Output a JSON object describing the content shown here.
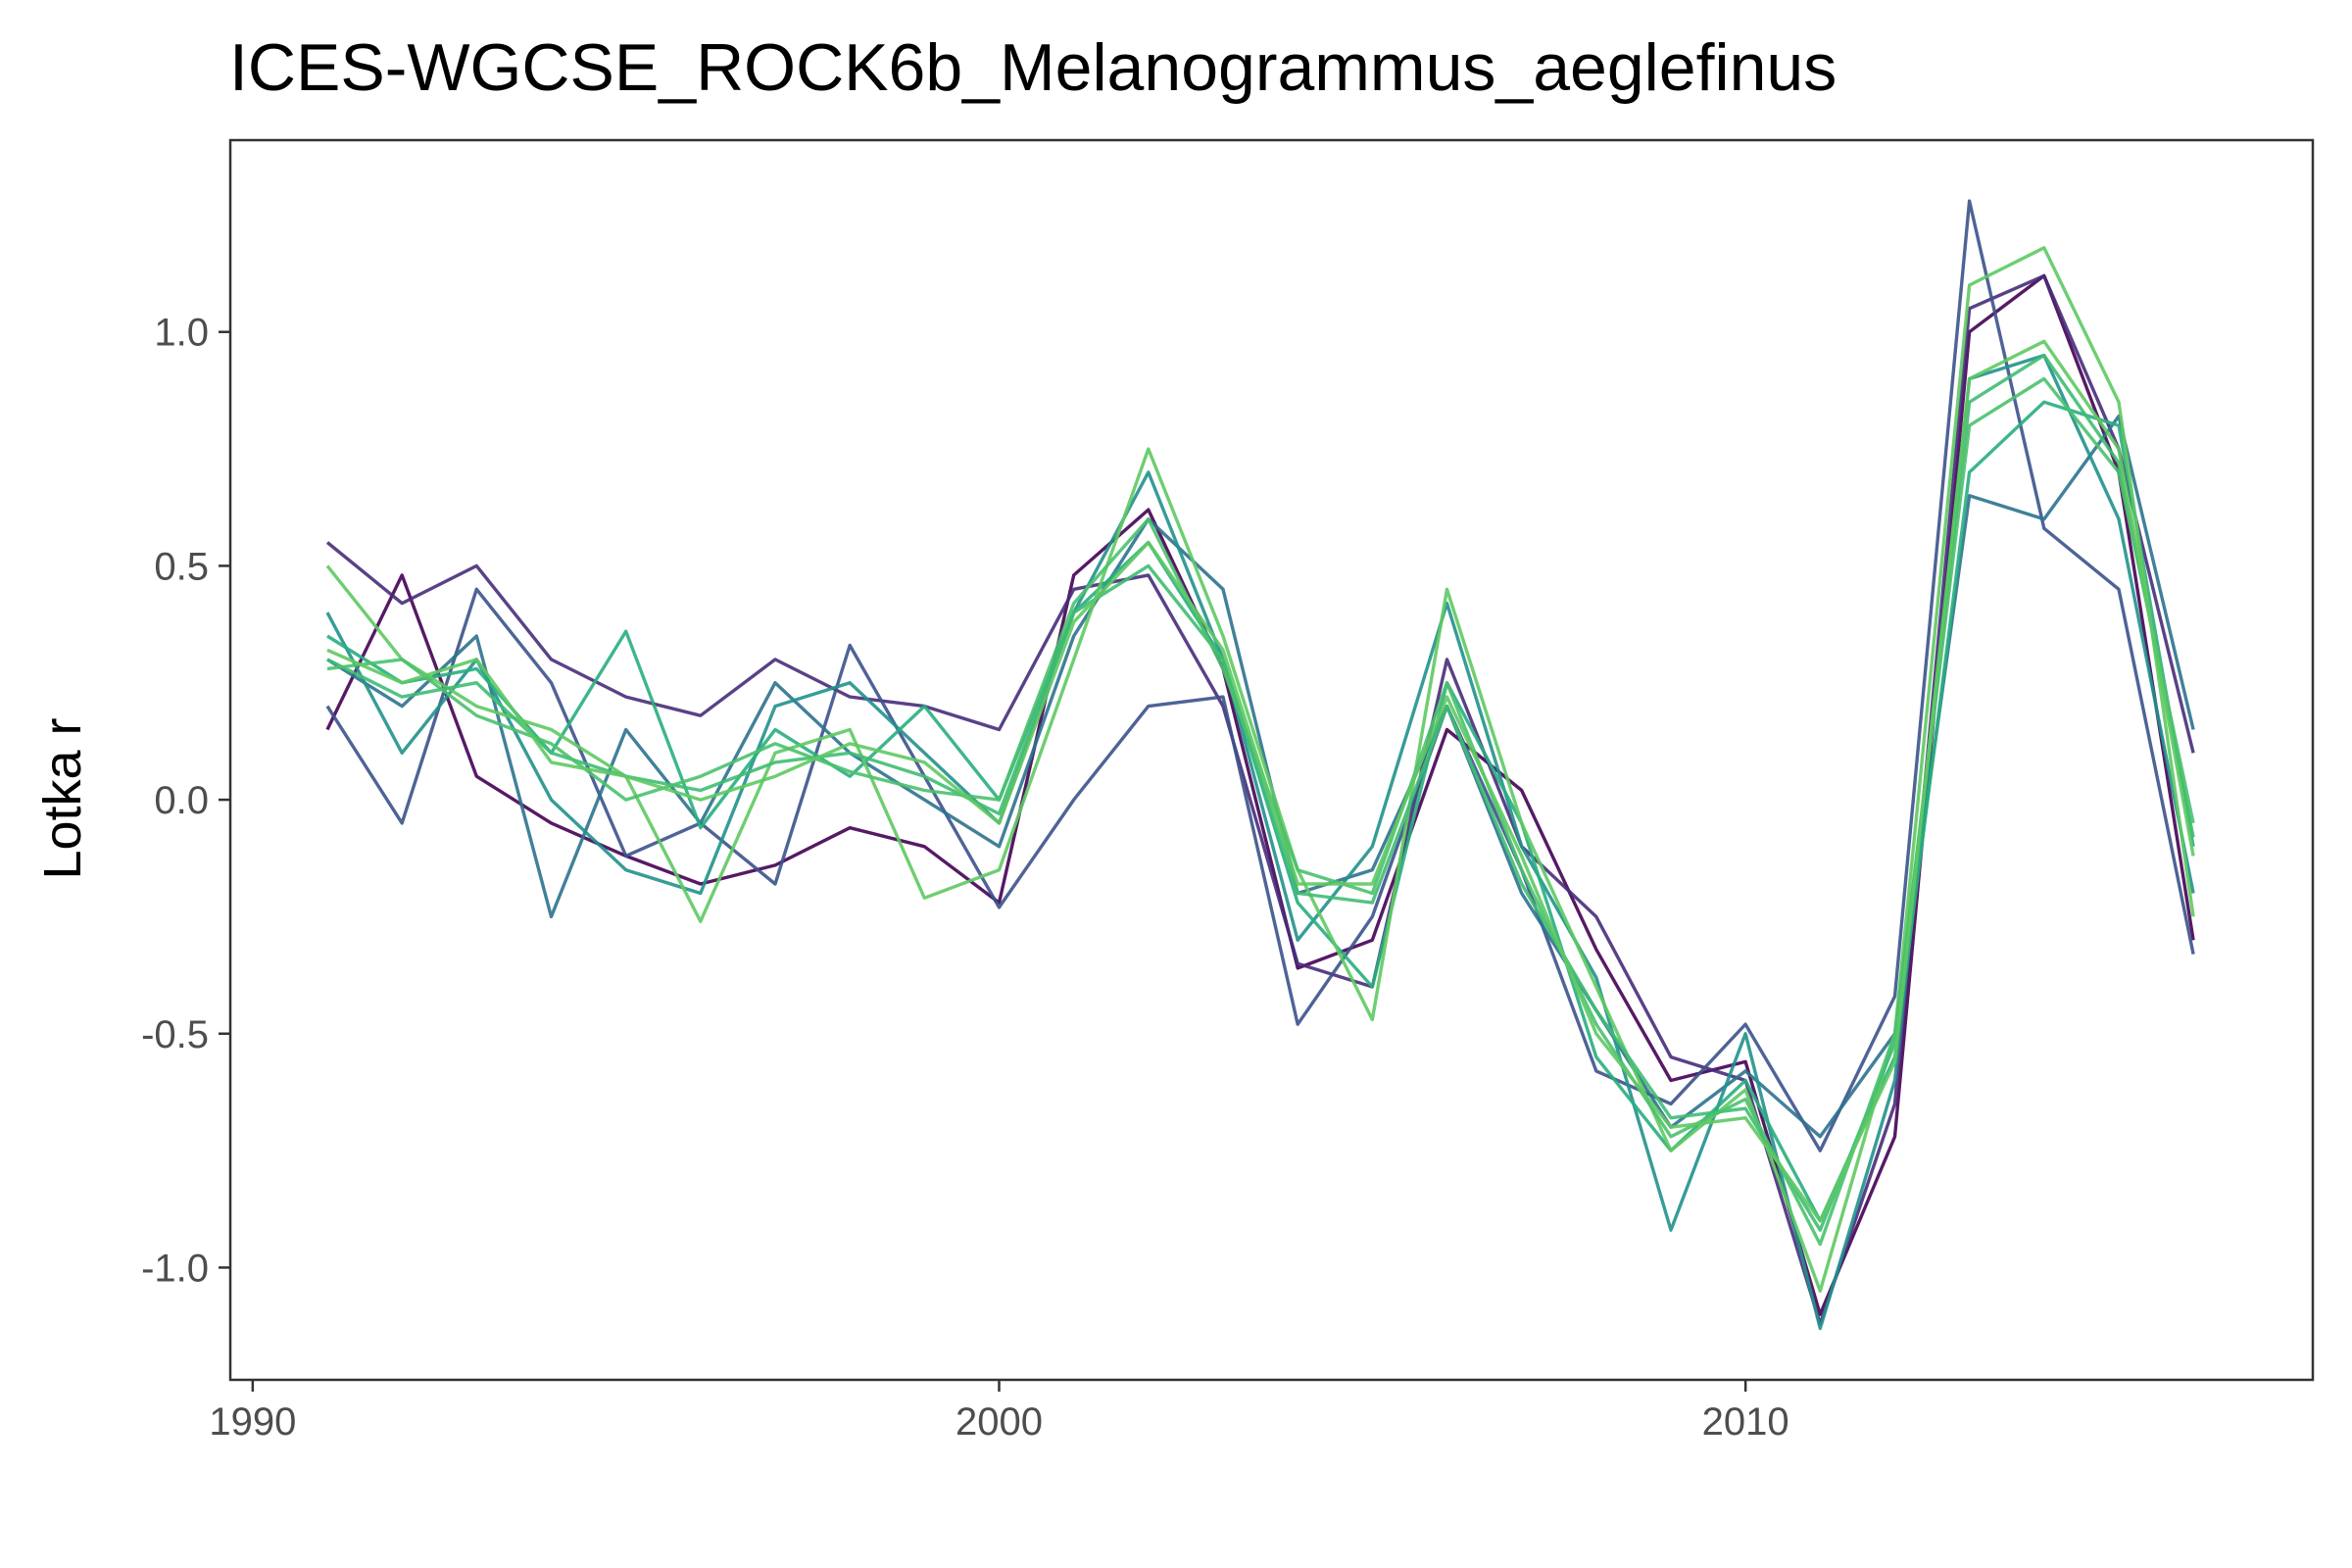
{
  "chart_data": {
    "type": "line",
    "title": "ICES-WGCSE_ROCK6b_Melanogrammus_aeglefinus",
    "xlabel": "",
    "ylabel": "Lotka r",
    "xlim": [
      1989.7,
      2017.6
    ],
    "ylim": [
      -1.24,
      1.41
    ],
    "x_ticks": [
      1990,
      2000,
      2010
    ],
    "x_tick_labels": [
      "1990",
      "2000",
      "2010"
    ],
    "y_ticks": [
      1.0,
      0.5,
      0.0,
      -0.5,
      -1.0
    ],
    "y_tick_labels": [
      "1.0",
      "0.5",
      "0.0",
      "-0.5",
      "-1.0"
    ],
    "grid": false,
    "legend": "none",
    "x": [
      1991,
      1992,
      1993,
      1994,
      1995,
      1996,
      1997,
      1998,
      1999,
      2000,
      2001,
      2002,
      2003,
      2004,
      2005,
      2006,
      2007,
      2008,
      2009,
      2010,
      2011,
      2012,
      2013,
      2014,
      2015,
      2016
    ],
    "series": [
      {
        "color": "#440154",
        "values": [
          0.15,
          0.48,
          0.05,
          -0.05,
          -0.12,
          -0.18,
          -0.14,
          -0.06,
          -0.1,
          -0.22,
          0.48,
          0.62,
          0.28,
          -0.36,
          -0.3,
          0.15,
          0.02,
          -0.32,
          -0.6,
          -0.56,
          -1.1,
          -0.72,
          1.0,
          1.12,
          0.7,
          -0.3
        ]
      },
      {
        "color": "#472c7a",
        "values": [
          0.55,
          0.42,
          0.5,
          0.3,
          0.22,
          0.18,
          0.3,
          0.22,
          0.2,
          0.15,
          0.45,
          0.48,
          0.2,
          -0.35,
          -0.4,
          0.3,
          -0.1,
          -0.25,
          -0.55,
          -0.6,
          -1.12,
          -0.65,
          1.05,
          1.12,
          0.75,
          0.1
        ]
      },
      {
        "color": "#3b528b",
        "values": [
          0.2,
          -0.05,
          0.45,
          0.25,
          -0.12,
          -0.05,
          -0.18,
          0.33,
          0.05,
          -0.23,
          0.0,
          0.2,
          0.22,
          -0.48,
          -0.25,
          0.2,
          -0.15,
          -0.58,
          -0.65,
          -0.48,
          -0.75,
          -0.42,
          1.28,
          0.58,
          0.45,
          -0.33
        ]
      },
      {
        "color": "#2c728e",
        "values": [
          0.3,
          0.2,
          0.35,
          -0.25,
          0.15,
          -0.05,
          0.25,
          0.1,
          0.0,
          -0.1,
          0.35,
          0.6,
          0.45,
          -0.2,
          -0.15,
          0.2,
          -0.2,
          -0.45,
          -0.7,
          -0.58,
          -0.72,
          -0.5,
          0.65,
          0.6,
          0.82,
          0.15
        ]
      },
      {
        "color": "#21918c",
        "values": [
          0.4,
          0.1,
          0.3,
          0.0,
          -0.15,
          -0.2,
          0.2,
          0.25,
          0.1,
          -0.05,
          0.4,
          0.7,
          0.3,
          -0.3,
          -0.1,
          0.42,
          -0.1,
          -0.38,
          -0.92,
          -0.5,
          -1.13,
          -0.6,
          0.9,
          0.95,
          0.6,
          -0.2
        ]
      },
      {
        "color": "#28ae80",
        "values": [
          0.35,
          0.25,
          0.28,
          0.1,
          0.36,
          -0.06,
          0.15,
          0.05,
          0.2,
          0.0,
          0.4,
          0.55,
          0.3,
          -0.22,
          -0.4,
          0.25,
          -0.05,
          -0.55,
          -0.75,
          -0.6,
          -0.9,
          -0.55,
          0.7,
          0.85,
          0.8,
          -0.1
        ]
      },
      {
        "color": "#5ec962",
        "values": [
          0.5,
          0.3,
          0.2,
          0.15,
          0.05,
          -0.26,
          0.1,
          0.15,
          -0.21,
          -0.15,
          0.3,
          0.75,
          0.35,
          -0.15,
          -0.47,
          0.45,
          -0.05,
          -0.4,
          -0.75,
          -0.62,
          -1.05,
          -0.5,
          1.1,
          1.18,
          0.85,
          -0.25
        ]
      },
      {
        "color": "#3fbc73",
        "values": [
          0.3,
          0.22,
          0.25,
          0.1,
          0.05,
          0.02,
          0.08,
          0.1,
          0.05,
          -0.03,
          0.4,
          0.5,
          0.3,
          -0.2,
          -0.22,
          0.2,
          -0.18,
          -0.45,
          -0.68,
          -0.66,
          -0.92,
          -0.52,
          0.85,
          0.95,
          0.72,
          -0.08
        ]
      },
      {
        "color": "#4ac16d",
        "values": [
          0.28,
          0.3,
          0.18,
          0.12,
          0.0,
          0.05,
          0.12,
          0.06,
          0.02,
          0.0,
          0.42,
          0.6,
          0.28,
          -0.15,
          -0.2,
          0.25,
          -0.15,
          -0.48,
          -0.72,
          -0.64,
          -0.95,
          -0.5,
          0.8,
          0.9,
          0.7,
          -0.05
        ]
      },
      {
        "color": "#5ec962",
        "values": [
          0.32,
          0.25,
          0.3,
          0.08,
          0.05,
          0.0,
          0.05,
          0.12,
          0.08,
          -0.05,
          0.38,
          0.55,
          0.32,
          -0.18,
          -0.18,
          0.22,
          -0.12,
          -0.5,
          -0.7,
          -0.68,
          -0.9,
          -0.56,
          0.9,
          0.98,
          0.75,
          -0.12
        ]
      }
    ]
  }
}
